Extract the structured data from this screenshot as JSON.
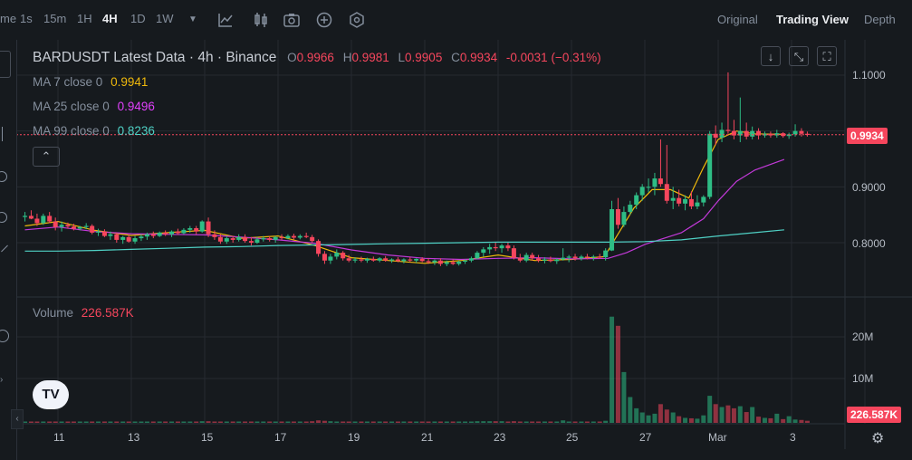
{
  "toolbar": {
    "partial_time_label": "me",
    "intervals": [
      "1s",
      "15m",
      "1H",
      "4H",
      "1D",
      "1W"
    ],
    "active_interval": "4H",
    "views": [
      "Original",
      "Trading View",
      "Depth"
    ],
    "active_view": "Trading View"
  },
  "legend": {
    "symbol": "BARDUSDT Latest Data · 4h · Binance",
    "o_label": "O",
    "o_value": "0.9966",
    "h_label": "H",
    "h_value": "0.9981",
    "l_label": "L",
    "l_value": "0.9905",
    "c_label": "C",
    "c_value": "0.9934",
    "change": "-0.0031 (−0.31%)",
    "ma7_label": "MA 7 close 0",
    "ma7_value": "0.9941",
    "ma25_label": "MA 25 close 0",
    "ma25_value": "0.9496",
    "ma99_label": "MA 99 close 0",
    "ma99_value": "0.8236",
    "volume_label": "Volume",
    "volume_value": "226.587K"
  },
  "price_axis": {
    "ticks": [
      "1.1000",
      "0.9000",
      "0.8000"
    ],
    "current_price": "0.9934"
  },
  "volume_axis": {
    "ticks": [
      "20M",
      "10M"
    ],
    "current_volume": "226.587K"
  },
  "time_axis": {
    "ticks": [
      "11",
      "13",
      "15",
      "17",
      "19",
      "21",
      "23",
      "25",
      "27",
      "Mar",
      "3"
    ]
  },
  "colors": {
    "up": "#2ebd85",
    "down": "#f6465d",
    "ma7": "#f0b90b",
    "ma25": "#c239d8",
    "ma99": "#4fd1c5",
    "background": "#161a1e",
    "grid": "#262a30"
  },
  "icons": {
    "logo": "tradingview-logo",
    "settings": "gear-icon"
  },
  "chart_data": {
    "type": "candlestick",
    "symbol": "BARDUSDT",
    "interval": "4h",
    "ylim": [
      0.73,
      1.125
    ],
    "volume_ylim": [
      0,
      27
    ],
    "x_range_days": [
      10,
      32.8
    ],
    "series": [
      {
        "name": "MA 7 close 0",
        "points": [
          [
            10.1,
            0.83
          ],
          [
            11,
            0.838
          ],
          [
            12,
            0.822
          ],
          [
            13,
            0.813
          ],
          [
            14,
            0.818
          ],
          [
            15,
            0.822
          ],
          [
            16,
            0.808
          ],
          [
            17,
            0.812
          ],
          [
            18,
            0.795
          ],
          [
            19,
            0.773
          ],
          [
            20,
            0.768
          ],
          [
            21,
            0.763
          ],
          [
            22,
            0.768
          ],
          [
            23,
            0.778
          ],
          [
            24,
            0.768
          ],
          [
            25,
            0.77
          ],
          [
            25.9,
            0.775
          ],
          [
            26.2,
            0.808
          ],
          [
            26.7,
            0.862
          ],
          [
            27.2,
            0.895
          ],
          [
            27.7,
            0.895
          ],
          [
            28.2,
            0.88
          ],
          [
            28.6,
            0.935
          ],
          [
            29,
            0.985
          ],
          [
            29.5,
            1.0
          ],
          [
            30,
            0.995
          ],
          [
            30.8,
            0.994
          ]
        ]
      },
      {
        "name": "MA 25 close 0",
        "points": [
          [
            10.1,
            0.823
          ],
          [
            11,
            0.828
          ],
          [
            12,
            0.82
          ],
          [
            13,
            0.816
          ],
          [
            14,
            0.815
          ],
          [
            15,
            0.814
          ],
          [
            16,
            0.81
          ],
          [
            17,
            0.805
          ],
          [
            18,
            0.799
          ],
          [
            19,
            0.787
          ],
          [
            20,
            0.778
          ],
          [
            21,
            0.772
          ],
          [
            22,
            0.77
          ],
          [
            23,
            0.772
          ],
          [
            24,
            0.773
          ],
          [
            25,
            0.771
          ],
          [
            26,
            0.772
          ],
          [
            26.5,
            0.782
          ],
          [
            27,
            0.797
          ],
          [
            28,
            0.818
          ],
          [
            28.6,
            0.843
          ],
          [
            29,
            0.875
          ],
          [
            29.5,
            0.91
          ],
          [
            30,
            0.93
          ],
          [
            30.8,
            0.949
          ]
        ]
      },
      {
        "name": "MA 99 close 0",
        "points": [
          [
            10.1,
            0.785
          ],
          [
            11,
            0.785
          ],
          [
            12,
            0.786
          ],
          [
            13,
            0.788
          ],
          [
            14,
            0.79
          ],
          [
            15,
            0.792
          ],
          [
            16,
            0.793
          ],
          [
            17,
            0.795
          ],
          [
            18,
            0.796
          ],
          [
            19,
            0.797
          ],
          [
            20,
            0.798
          ],
          [
            21,
            0.799
          ],
          [
            22,
            0.8
          ],
          [
            23,
            0.801
          ],
          [
            24,
            0.801
          ],
          [
            25,
            0.801
          ],
          [
            26,
            0.801
          ],
          [
            27,
            0.802
          ],
          [
            28,
            0.805
          ],
          [
            29,
            0.812
          ],
          [
            30,
            0.818
          ],
          [
            30.8,
            0.823
          ]
        ]
      }
    ],
    "candles": [
      [
        10.1,
        0.846,
        0.855,
        0.838,
        0.848,
        0.3
      ],
      [
        10.27,
        0.848,
        0.858,
        0.842,
        0.843,
        0.3
      ],
      [
        10.43,
        0.843,
        0.852,
        0.83,
        0.835,
        0.3
      ],
      [
        10.6,
        0.835,
        0.852,
        0.832,
        0.848,
        0.3
      ],
      [
        10.77,
        0.848,
        0.855,
        0.835,
        0.838,
        0.3
      ],
      [
        10.93,
        0.838,
        0.845,
        0.822,
        0.828,
        0.3
      ],
      [
        11.1,
        0.828,
        0.838,
        0.82,
        0.832,
        0.3
      ],
      [
        11.27,
        0.832,
        0.836,
        0.825,
        0.829,
        0.3
      ],
      [
        11.43,
        0.829,
        0.834,
        0.822,
        0.825,
        0.3
      ],
      [
        11.6,
        0.825,
        0.83,
        0.822,
        0.828,
        0.3
      ],
      [
        11.77,
        0.828,
        0.835,
        0.824,
        0.83,
        0.3
      ],
      [
        11.93,
        0.83,
        0.833,
        0.815,
        0.818,
        0.3
      ],
      [
        12.1,
        0.818,
        0.825,
        0.812,
        0.82,
        0.3
      ],
      [
        12.27,
        0.82,
        0.824,
        0.81,
        0.812,
        0.3
      ],
      [
        12.43,
        0.812,
        0.82,
        0.805,
        0.815,
        0.3
      ],
      [
        12.6,
        0.815,
        0.818,
        0.8,
        0.805,
        0.3
      ],
      [
        12.77,
        0.805,
        0.812,
        0.798,
        0.81,
        0.3
      ],
      [
        12.93,
        0.81,
        0.815,
        0.8,
        0.802,
        0.3
      ],
      [
        13.1,
        0.802,
        0.812,
        0.798,
        0.808,
        0.3
      ],
      [
        13.27,
        0.808,
        0.815,
        0.803,
        0.811,
        0.3
      ],
      [
        13.43,
        0.811,
        0.818,
        0.805,
        0.815,
        0.3
      ],
      [
        13.6,
        0.815,
        0.82,
        0.808,
        0.812,
        0.3
      ],
      [
        13.77,
        0.812,
        0.82,
        0.81,
        0.818,
        0.3
      ],
      [
        13.93,
        0.818,
        0.822,
        0.812,
        0.815,
        0.3
      ],
      [
        14.1,
        0.815,
        0.822,
        0.81,
        0.82,
        0.3
      ],
      [
        14.27,
        0.82,
        0.825,
        0.814,
        0.817,
        0.3
      ],
      [
        14.43,
        0.817,
        0.826,
        0.815,
        0.823,
        0.3
      ],
      [
        14.6,
        0.823,
        0.83,
        0.818,
        0.826,
        0.3
      ],
      [
        14.77,
        0.826,
        0.83,
        0.815,
        0.82,
        0.3
      ],
      [
        14.93,
        0.82,
        0.84,
        0.818,
        0.838,
        0.4
      ],
      [
        15.1,
        0.838,
        0.845,
        0.81,
        0.815,
        0.4
      ],
      [
        15.27,
        0.815,
        0.822,
        0.805,
        0.81,
        0.3
      ],
      [
        15.43,
        0.81,
        0.815,
        0.798,
        0.802,
        0.3
      ],
      [
        15.6,
        0.802,
        0.812,
        0.798,
        0.808,
        0.3
      ],
      [
        15.77,
        0.808,
        0.812,
        0.8,
        0.805,
        0.3
      ],
      [
        15.93,
        0.805,
        0.815,
        0.802,
        0.81,
        0.3
      ],
      [
        16.1,
        0.81,
        0.815,
        0.8,
        0.803,
        0.3
      ],
      [
        16.27,
        0.803,
        0.81,
        0.795,
        0.8,
        0.3
      ],
      [
        16.43,
        0.8,
        0.81,
        0.798,
        0.806,
        0.3
      ],
      [
        16.6,
        0.806,
        0.812,
        0.802,
        0.808,
        0.3
      ],
      [
        16.77,
        0.808,
        0.812,
        0.802,
        0.805,
        0.3
      ],
      [
        16.93,
        0.805,
        0.812,
        0.8,
        0.81,
        0.3
      ],
      [
        17.1,
        0.81,
        0.815,
        0.805,
        0.808,
        0.3
      ],
      [
        17.27,
        0.808,
        0.815,
        0.806,
        0.812,
        0.3
      ],
      [
        17.43,
        0.812,
        0.816,
        0.806,
        0.809,
        0.3
      ],
      [
        17.6,
        0.809,
        0.815,
        0.806,
        0.812,
        0.3
      ],
      [
        17.77,
        0.812,
        0.818,
        0.808,
        0.81,
        0.3
      ],
      [
        17.93,
        0.81,
        0.814,
        0.8,
        0.803,
        0.4
      ],
      [
        18.1,
        0.803,
        0.806,
        0.775,
        0.78,
        0.6
      ],
      [
        18.27,
        0.78,
        0.785,
        0.762,
        0.768,
        0.5
      ],
      [
        18.43,
        0.768,
        0.78,
        0.762,
        0.775,
        0.4
      ],
      [
        18.6,
        0.775,
        0.788,
        0.77,
        0.782,
        0.3
      ],
      [
        18.77,
        0.782,
        0.785,
        0.768,
        0.772,
        0.3
      ],
      [
        18.93,
        0.772,
        0.778,
        0.765,
        0.768,
        0.3
      ],
      [
        19.1,
        0.768,
        0.774,
        0.764,
        0.77,
        0.3
      ],
      [
        19.27,
        0.77,
        0.775,
        0.765,
        0.768,
        0.3
      ],
      [
        19.43,
        0.768,
        0.773,
        0.764,
        0.771,
        0.3
      ],
      [
        19.6,
        0.771,
        0.775,
        0.766,
        0.768,
        0.3
      ],
      [
        19.77,
        0.768,
        0.774,
        0.765,
        0.772,
        0.3
      ],
      [
        19.93,
        0.772,
        0.776,
        0.766,
        0.768,
        0.3
      ],
      [
        20.1,
        0.768,
        0.772,
        0.764,
        0.77,
        0.3
      ],
      [
        20.27,
        0.77,
        0.774,
        0.765,
        0.767,
        0.3
      ],
      [
        20.43,
        0.767,
        0.772,
        0.763,
        0.77,
        0.3
      ],
      [
        20.6,
        0.77,
        0.774,
        0.765,
        0.768,
        0.3
      ],
      [
        20.77,
        0.768,
        0.772,
        0.764,
        0.771,
        0.3
      ],
      [
        20.93,
        0.771,
        0.774,
        0.765,
        0.767,
        0.3
      ],
      [
        21.1,
        0.767,
        0.772,
        0.762,
        0.765,
        0.3
      ],
      [
        21.27,
        0.765,
        0.77,
        0.76,
        0.768,
        0.3
      ],
      [
        21.43,
        0.768,
        0.772,
        0.758,
        0.762,
        0.3
      ],
      [
        21.6,
        0.762,
        0.768,
        0.758,
        0.765,
        0.3
      ],
      [
        21.77,
        0.765,
        0.77,
        0.76,
        0.762,
        0.3
      ],
      [
        21.93,
        0.762,
        0.768,
        0.759,
        0.766,
        0.3
      ],
      [
        22.1,
        0.766,
        0.77,
        0.762,
        0.768,
        0.3
      ],
      [
        22.27,
        0.768,
        0.775,
        0.765,
        0.772,
        0.3
      ],
      [
        22.43,
        0.772,
        0.785,
        0.77,
        0.782,
        0.4
      ],
      [
        22.6,
        0.782,
        0.792,
        0.775,
        0.788,
        0.4
      ],
      [
        22.77,
        0.788,
        0.798,
        0.78,
        0.792,
        0.4
      ],
      [
        22.93,
        0.792,
        0.8,
        0.785,
        0.79,
        0.4
      ],
      [
        23.1,
        0.79,
        0.798,
        0.782,
        0.795,
        0.4
      ],
      [
        23.27,
        0.795,
        0.8,
        0.785,
        0.79,
        0.3
      ],
      [
        23.43,
        0.79,
        0.795,
        0.77,
        0.773,
        0.4
      ],
      [
        23.6,
        0.773,
        0.78,
        0.765,
        0.768,
        0.3
      ],
      [
        23.77,
        0.768,
        0.782,
        0.765,
        0.778,
        0.3
      ],
      [
        23.93,
        0.778,
        0.782,
        0.768,
        0.772,
        0.3
      ],
      [
        24.1,
        0.772,
        0.778,
        0.765,
        0.768,
        0.3
      ],
      [
        24.27,
        0.768,
        0.774,
        0.763,
        0.77,
        0.3
      ],
      [
        24.43,
        0.77,
        0.775,
        0.765,
        0.767,
        0.3
      ],
      [
        24.6,
        0.767,
        0.772,
        0.762,
        0.77,
        0.3
      ],
      [
        24.77,
        0.77,
        0.79,
        0.768,
        0.773,
        0.6
      ],
      [
        24.93,
        0.773,
        0.778,
        0.765,
        0.775,
        0.3
      ],
      [
        25.1,
        0.775,
        0.78,
        0.768,
        0.772,
        0.3
      ],
      [
        25.27,
        0.772,
        0.778,
        0.768,
        0.775,
        0.3
      ],
      [
        25.43,
        0.775,
        0.78,
        0.77,
        0.774,
        0.3
      ],
      [
        25.6,
        0.774,
        0.778,
        0.768,
        0.775,
        0.3
      ],
      [
        25.77,
        0.775,
        0.78,
        0.771,
        0.774,
        0.3
      ],
      [
        25.93,
        0.774,
        0.79,
        0.768,
        0.786,
        0.5
      ],
      [
        26.1,
        0.786,
        0.875,
        0.785,
        0.86,
        25.5
      ],
      [
        26.27,
        0.86,
        0.88,
        0.825,
        0.832,
        23.3
      ],
      [
        26.43,
        0.832,
        0.865,
        0.828,
        0.855,
        12.2
      ],
      [
        26.6,
        0.855,
        0.875,
        0.85,
        0.868,
        6.2
      ],
      [
        26.77,
        0.868,
        0.89,
        0.86,
        0.885,
        3.5
      ],
      [
        26.93,
        0.885,
        0.905,
        0.875,
        0.9,
        2.5
      ],
      [
        27.1,
        0.9,
        0.915,
        0.89,
        0.9,
        1.8
      ],
      [
        27.27,
        0.9,
        0.925,
        0.885,
        0.915,
        2.2
      ],
      [
        27.43,
        0.915,
        0.985,
        0.9,
        0.905,
        4.5
      ],
      [
        27.6,
        0.905,
        0.975,
        0.87,
        0.875,
        3.2
      ],
      [
        27.77,
        0.875,
        0.9,
        0.86,
        0.88,
        2.5
      ],
      [
        27.93,
        0.88,
        0.895,
        0.865,
        0.87,
        1.6
      ],
      [
        28.1,
        0.87,
        0.885,
        0.858,
        0.878,
        1.2
      ],
      [
        28.27,
        0.878,
        0.892,
        0.86,
        0.865,
        1.1
      ],
      [
        28.43,
        0.865,
        0.885,
        0.86,
        0.872,
        1.0
      ],
      [
        28.6,
        0.872,
        0.885,
        0.865,
        0.882,
        1.8
      ],
      [
        28.77,
        0.882,
        1.0,
        0.878,
        0.995,
        6.5
      ],
      [
        28.93,
        0.995,
        1.01,
        0.975,
        0.988,
        4.5
      ],
      [
        29.1,
        0.988,
        1.015,
        0.98,
        1.002,
        3.8
      ],
      [
        29.27,
        1.002,
        1.105,
        0.995,
        1.0,
        4.2
      ],
      [
        29.43,
        1.0,
        1.02,
        0.985,
        0.992,
        3.5
      ],
      [
        29.6,
        0.992,
        1.06,
        0.98,
        1.0,
        4.0
      ],
      [
        29.77,
        1.0,
        1.015,
        0.985,
        0.99,
        2.6
      ],
      [
        29.93,
        0.99,
        1.008,
        0.985,
        1.0,
        3.8
      ],
      [
        30.1,
        1.0,
        1.005,
        0.985,
        0.992,
        1.5
      ],
      [
        30.27,
        0.992,
        0.999,
        0.988,
        0.995,
        1.2
      ],
      [
        30.43,
        0.995,
        0.999,
        0.988,
        0.992,
        1.1
      ],
      [
        30.6,
        0.992,
        1.002,
        0.988,
        0.996,
        2.2
      ],
      [
        30.77,
        0.996,
        0.998,
        0.988,
        0.991,
        0.9
      ],
      [
        30.93,
        0.991,
        0.997,
        0.986,
        0.994,
        1.6
      ],
      [
        31.1,
        0.994,
        1.012,
        0.99,
        1.0,
        0.8
      ],
      [
        31.27,
        1.0,
        1.005,
        0.99,
        0.995,
        0.7
      ],
      [
        31.43,
        0.995,
        0.999,
        0.99,
        0.993,
        0.5
      ]
    ]
  }
}
